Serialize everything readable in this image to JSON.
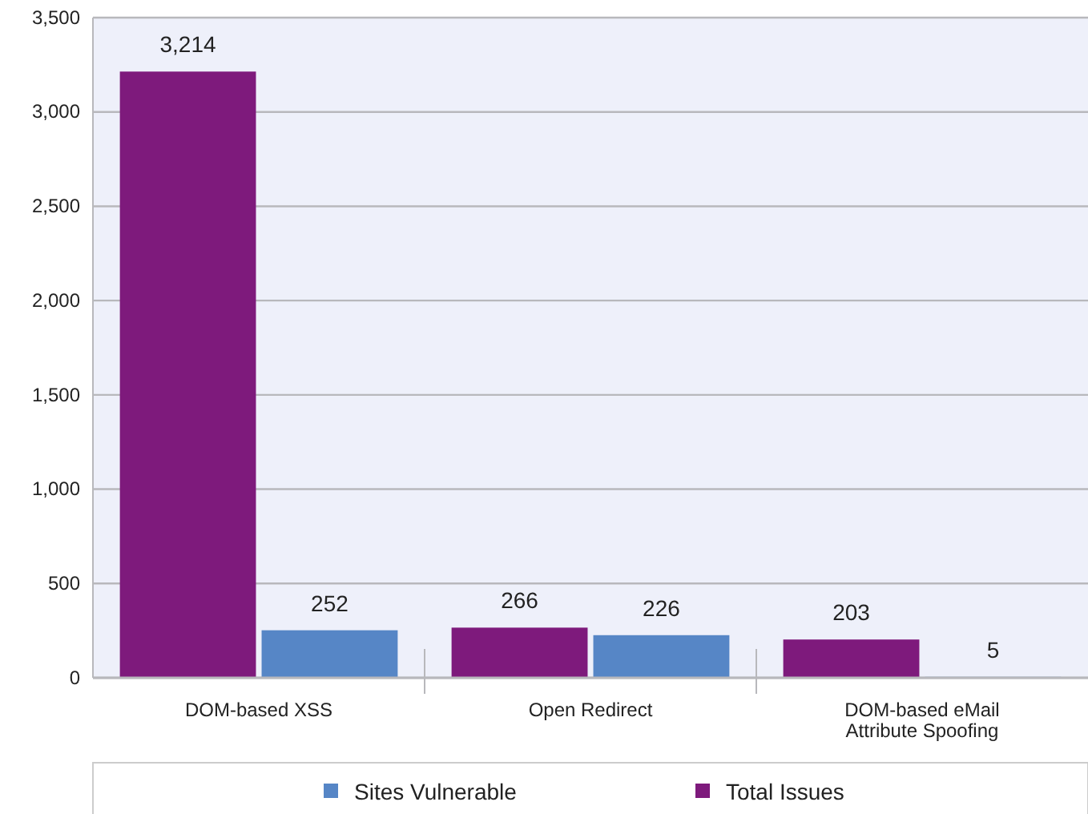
{
  "chart_data": {
    "type": "bar",
    "categories": [
      "DOM-based XSS",
      "Open Redirect",
      "DOM-based eMail Attribute Spoofing"
    ],
    "series": [
      {
        "name": "Total Issues",
        "color": "#7e1a7c",
        "values": [
          3214,
          266,
          203
        ],
        "value_labels": [
          "3,214",
          "266",
          "203"
        ]
      },
      {
        "name": "Sites Vulnerable",
        "color": "#5686c6",
        "values": [
          252,
          226,
          5
        ],
        "value_labels": [
          "252",
          "226",
          "5"
        ]
      }
    ],
    "ylim": [
      0,
      3500
    ],
    "yticks": [
      {
        "value": 0,
        "label": "0"
      },
      {
        "value": 500,
        "label": "500"
      },
      {
        "value": 1000,
        "label": "1,000"
      },
      {
        "value": 1500,
        "label": "1,500"
      },
      {
        "value": 2000,
        "label": "2,000"
      },
      {
        "value": 2500,
        "label": "2,500"
      },
      {
        "value": 3000,
        "label": "3,000"
      },
      {
        "value": 3500,
        "label": "3,500"
      }
    ],
    "grid": "y",
    "legend": "bottom"
  }
}
